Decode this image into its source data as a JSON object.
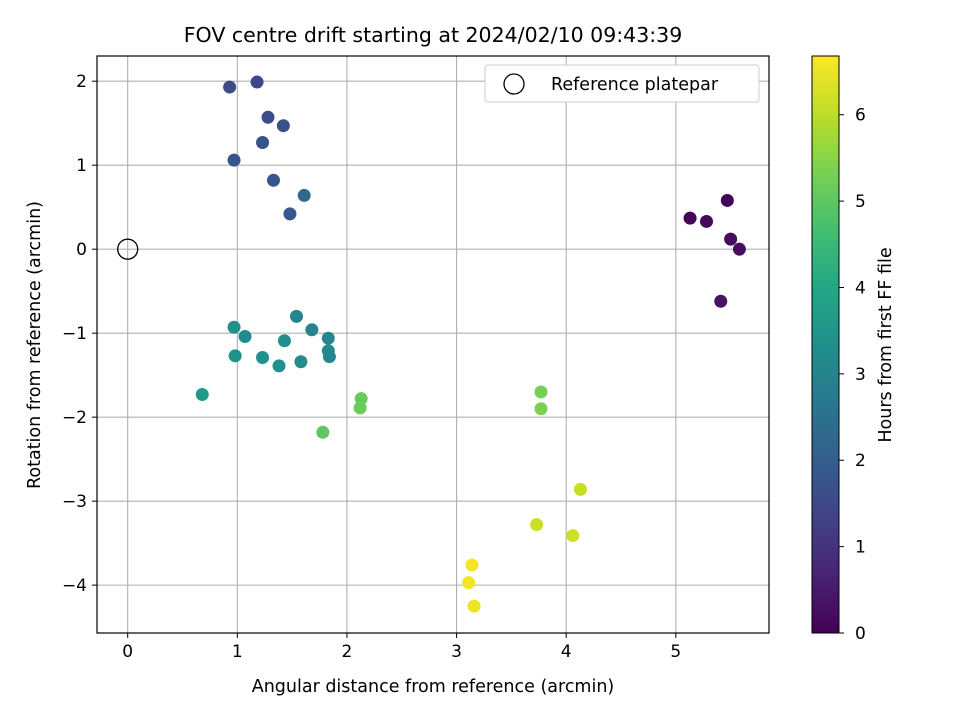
{
  "chart_data": {
    "type": "scatter",
    "title": "FOV centre drift starting at 2024/02/10 09:43:39",
    "xlabel": "Angular distance from reference (arcmin)",
    "ylabel": "Rotation from reference (arcmin)",
    "xlim": [
      -0.28,
      5.85
    ],
    "ylim": [
      -4.57,
      2.3
    ],
    "xticks": [
      0,
      1,
      2,
      3,
      4,
      5
    ],
    "yticks": [
      -4,
      -3,
      -2,
      -1,
      0,
      1,
      2
    ],
    "grid": true,
    "legend": {
      "placement": "top-right",
      "entries": [
        "Reference platepar"
      ]
    },
    "reference_point": {
      "x": 0,
      "y": 0,
      "label": "Reference platepar"
    },
    "colorbar": {
      "label": "Hours from first FF file",
      "colormap": "viridis",
      "range": [
        0,
        6.68
      ],
      "ticks": [
        0,
        1,
        2,
        3,
        4,
        5,
        6
      ]
    },
    "points": [
      {
        "x": 5.47,
        "y": 0.58,
        "hours": 0.05
      },
      {
        "x": 5.13,
        "y": 0.37,
        "hours": 0.1
      },
      {
        "x": 5.28,
        "y": 0.33,
        "hours": 0.15
      },
      {
        "x": 5.5,
        "y": 0.12,
        "hours": 0.2
      },
      {
        "x": 5.58,
        "y": 0.0,
        "hours": 0.25
      },
      {
        "x": 5.41,
        "y": -0.62,
        "hours": 0.35
      },
      {
        "x": 1.18,
        "y": 1.99,
        "hours": 1.45
      },
      {
        "x": 0.93,
        "y": 1.93,
        "hours": 1.55
      },
      {
        "x": 1.28,
        "y": 1.57,
        "hours": 1.6
      },
      {
        "x": 1.42,
        "y": 1.47,
        "hours": 1.65
      },
      {
        "x": 1.23,
        "y": 1.27,
        "hours": 1.7
      },
      {
        "x": 0.97,
        "y": 1.06,
        "hours": 1.75
      },
      {
        "x": 1.33,
        "y": 0.82,
        "hours": 1.8
      },
      {
        "x": 1.61,
        "y": 0.64,
        "hours": 2.3
      },
      {
        "x": 1.48,
        "y": 0.42,
        "hours": 1.85
      },
      {
        "x": 1.54,
        "y": -0.8,
        "hours": 3.0
      },
      {
        "x": 0.97,
        "y": -0.93,
        "hours": 3.4
      },
      {
        "x": 1.68,
        "y": -0.96,
        "hours": 3.0
      },
      {
        "x": 1.07,
        "y": -1.04,
        "hours": 3.2
      },
      {
        "x": 1.83,
        "y": -1.06,
        "hours": 3.1
      },
      {
        "x": 1.43,
        "y": -1.09,
        "hours": 3.3
      },
      {
        "x": 1.83,
        "y": -1.21,
        "hours": 3.2
      },
      {
        "x": 0.98,
        "y": -1.27,
        "hours": 3.4
      },
      {
        "x": 1.84,
        "y": -1.28,
        "hours": 3.1
      },
      {
        "x": 1.23,
        "y": -1.29,
        "hours": 3.3
      },
      {
        "x": 1.58,
        "y": -1.34,
        "hours": 3.25
      },
      {
        "x": 1.38,
        "y": -1.39,
        "hours": 3.35
      },
      {
        "x": 0.68,
        "y": -1.73,
        "hours": 3.6
      },
      {
        "x": 2.13,
        "y": -1.78,
        "hours": 5.1
      },
      {
        "x": 2.12,
        "y": -1.89,
        "hours": 5.15
      },
      {
        "x": 1.78,
        "y": -2.18,
        "hours": 5.0
      },
      {
        "x": 3.77,
        "y": -1.7,
        "hours": 5.3
      },
      {
        "x": 3.77,
        "y": -1.9,
        "hours": 5.35
      },
      {
        "x": 4.13,
        "y": -2.86,
        "hours": 6.1
      },
      {
        "x": 3.73,
        "y": -3.28,
        "hours": 6.15
      },
      {
        "x": 4.06,
        "y": -3.41,
        "hours": 6.2
      },
      {
        "x": 3.14,
        "y": -3.76,
        "hours": 6.6
      },
      {
        "x": 3.11,
        "y": -3.97,
        "hours": 6.55
      },
      {
        "x": 3.16,
        "y": -4.25,
        "hours": 6.5
      }
    ]
  }
}
